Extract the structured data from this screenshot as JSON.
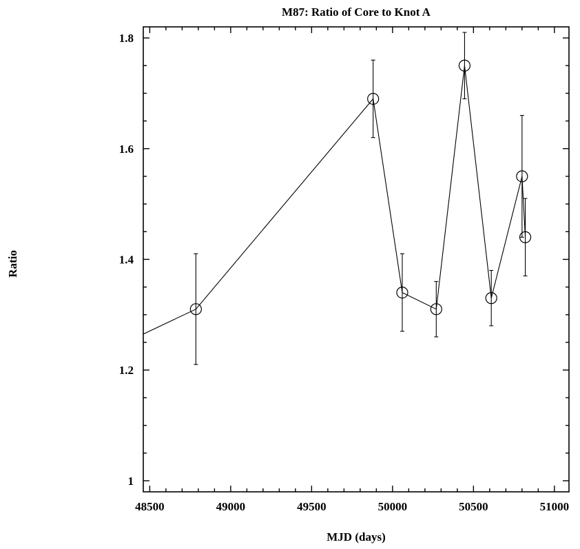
{
  "chart_data": {
    "type": "line",
    "title": "M87: Ratio of Core to Knot A",
    "xlabel": "MJD (days)",
    "ylabel": "Ratio",
    "xlim": [
      48460,
      51090
    ],
    "ylim": [
      0.98,
      1.82
    ],
    "x_ticks": [
      48500,
      49000,
      49500,
      50000,
      50500,
      51000
    ],
    "x_tick_labels": [
      "48500",
      "49000",
      "49500",
      "50000",
      "50500",
      "51000"
    ],
    "x_minor_step": 100,
    "y_ticks": [
      1.0,
      1.2,
      1.4,
      1.6,
      1.8
    ],
    "y_tick_labels": [
      "1",
      "1.2",
      "1.4",
      "1.6",
      "1.8"
    ],
    "y_minor_step": 0.05,
    "grid": false,
    "marker": "open-circle",
    "line_extends_from": {
      "x": 48460,
      "y": 1.265
    },
    "series": [
      {
        "points": [
          {
            "x": 48785,
            "y": 1.31,
            "err_low": 1.21,
            "err_high": 1.41
          },
          {
            "x": 49880,
            "y": 1.69,
            "err_low": 1.62,
            "err_high": 1.76
          },
          {
            "x": 50060,
            "y": 1.34,
            "err_low": 1.27,
            "err_high": 1.41
          },
          {
            "x": 50270,
            "y": 1.31,
            "err_low": 1.26,
            "err_high": 1.36
          },
          {
            "x": 50445,
            "y": 1.75,
            "err_low": 1.69,
            "err_high": 1.81
          },
          {
            "x": 50610,
            "y": 1.33,
            "err_low": 1.28,
            "err_high": 1.38
          },
          {
            "x": 50800,
            "y": 1.55,
            "err_low": 1.44,
            "err_high": 1.66
          },
          {
            "x": 50820,
            "y": 1.44,
            "err_low": 1.37,
            "err_high": 1.51
          }
        ]
      }
    ]
  }
}
